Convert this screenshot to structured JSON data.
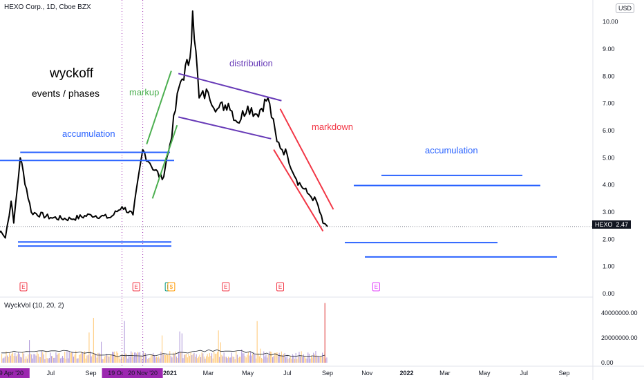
{
  "header": {
    "title": "HEXO Corp., 1D, Cboe BZX",
    "currency": "USD"
  },
  "volume_title": "WyckVol (10, 20, 2)",
  "last_price": {
    "ticker": "HEXO",
    "value": "2.47"
  },
  "annotations": {
    "title": "wyckoff",
    "subtitle": "events / phases",
    "accumulation_left": "accumulation",
    "markup": "markup",
    "distribution": "distribution",
    "markdown": "markdown",
    "accumulation_right": "accumulation"
  },
  "colors": {
    "price": "#000000",
    "blue": "#2962ff",
    "green": "#4caf50",
    "purple": "#673ab7",
    "red": "#f23645",
    "marker": "#9c27b0",
    "vol_bar": "#b39ddb",
    "vol_bar_alt": "#ffcc80",
    "vol_spike": "#ef9a9a"
  },
  "chart_data": {
    "type": "line",
    "series": [
      {
        "name": "HEXO",
        "x": [
          "2020-04-01",
          "2020-04-15",
          "2020-04-22",
          "2020-05-01",
          "2020-05-05",
          "2020-05-15",
          "2020-06-01",
          "2020-07-01",
          "2020-08-01",
          "2020-09-01",
          "2020-10-01",
          "2020-10-19",
          "2020-11-05",
          "2020-11-20",
          "2020-12-01",
          "2020-12-20",
          "2021-01-01",
          "2021-01-15",
          "2021-02-01",
          "2021-02-05",
          "2021-02-15",
          "2021-03-01",
          "2021-03-15",
          "2021-04-01",
          "2021-04-15",
          "2021-05-01",
          "2021-05-15",
          "2021-06-01",
          "2021-06-15",
          "2021-07-01",
          "2021-07-15",
          "2021-08-01",
          "2021-08-15",
          "2021-08-25",
          "2021-09-01"
        ],
        "values": [
          2.15,
          2.3,
          2.05,
          3.4,
          2.6,
          5.0,
          3.0,
          2.8,
          2.75,
          2.9,
          2.8,
          3.2,
          2.9,
          5.3,
          4.8,
          4.2,
          5.5,
          7.6,
          8.7,
          10.4,
          7.2,
          7.4,
          6.8,
          7.0,
          6.3,
          6.9,
          6.6,
          7.2,
          5.6,
          5.1,
          4.2,
          3.7,
          3.4,
          2.6,
          2.47
        ]
      }
    ],
    "y_ticks": [
      "10.00",
      "9.00",
      "8.00",
      "7.00",
      "6.00",
      "5.00",
      "4.00",
      "3.00",
      "2.00",
      "1.00",
      "0.00"
    ],
    "ylim": [
      0,
      10.5
    ],
    "x_ticks": [
      "Jul",
      "Sep",
      "2021",
      "Mar",
      "May",
      "Jul",
      "Sep",
      "Nov",
      "2022",
      "Mar",
      "May",
      "Jul",
      "Sep"
    ],
    "x_highlight_ticks": [
      "9 Apr '20",
      "19 Oct '20",
      "20 Nov '20"
    ],
    "event_markers": [
      "E",
      "E",
      "E",
      "$",
      "E",
      "E",
      "E"
    ],
    "volume": {
      "y_ticks": [
        "40000000.00",
        "20000000.00",
        "0.00"
      ],
      "ylim": [
        0,
        50000000
      ],
      "spike": 48000000
    }
  }
}
